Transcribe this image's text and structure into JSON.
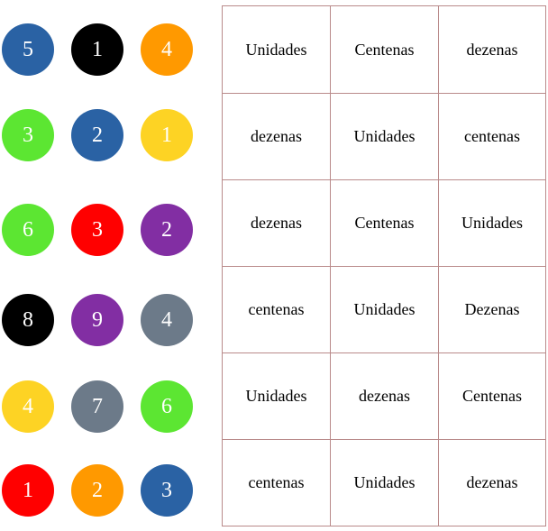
{
  "circles": [
    [
      {
        "n": "5",
        "color": "#2a62a4"
      },
      {
        "n": "1",
        "color": "#000000"
      },
      {
        "n": "4",
        "color": "#ff9900"
      }
    ],
    [
      {
        "n": "3",
        "color": "#5ce632"
      },
      {
        "n": "2",
        "color": "#2a62a4"
      },
      {
        "n": "1",
        "color": "#fdd324"
      }
    ],
    [
      {
        "n": "6",
        "color": "#5ce632"
      },
      {
        "n": "3",
        "color": "#ff0000"
      },
      {
        "n": "2",
        "color": "#822ea3"
      }
    ],
    [
      {
        "n": "8",
        "color": "#000000"
      },
      {
        "n": "9",
        "color": "#822ea3"
      },
      {
        "n": "4",
        "color": "#6c7a89"
      }
    ],
    [
      {
        "n": "4",
        "color": "#fdd324"
      },
      {
        "n": "7",
        "color": "#6c7a89"
      },
      {
        "n": "6",
        "color": "#5ce632"
      }
    ],
    [
      {
        "n": "1",
        "color": "#ff0000"
      },
      {
        "n": "2",
        "color": "#ff9900"
      },
      {
        "n": "3",
        "color": "#2a62a4"
      }
    ]
  ],
  "table": [
    [
      "Unidades",
      "Centenas",
      "dezenas"
    ],
    [
      "dezenas",
      "Unidades",
      "centenas"
    ],
    [
      "dezenas",
      "Centenas",
      "Unidades"
    ],
    [
      "centenas",
      "Unidades",
      "Dezenas"
    ],
    [
      "Unidades",
      "dezenas",
      "Centenas"
    ],
    [
      "centenas",
      "Unidades",
      "dezenas"
    ]
  ],
  "colors": {
    "grid_line": "#b98a8a",
    "text": "#000000",
    "circle_text": "#ffffff"
  }
}
